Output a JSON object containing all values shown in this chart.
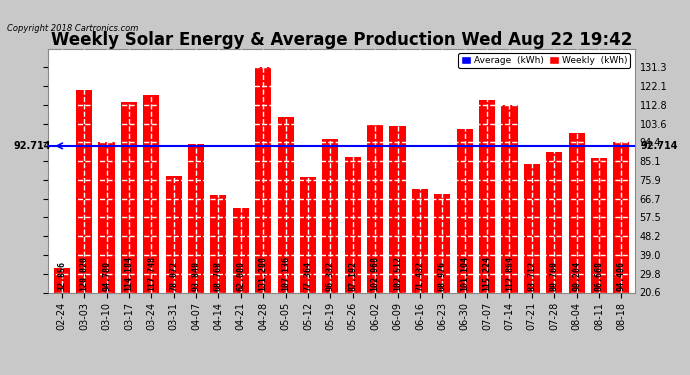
{
  "title": "Weekly Solar Energy & Average Production Wed Aug 22 19:42",
  "copyright": "Copyright 2018 Cartronics.com",
  "average_value": 92.714,
  "categories": [
    "02-24",
    "03-03",
    "03-10",
    "03-17",
    "03-24",
    "03-31",
    "04-07",
    "04-14",
    "04-21",
    "04-28",
    "05-05",
    "05-12",
    "05-19",
    "05-26",
    "06-02",
    "06-09",
    "06-16",
    "06-23",
    "06-30",
    "07-07",
    "07-14",
    "07-21",
    "07-28",
    "08-04",
    "08-11",
    "08-18"
  ],
  "values": [
    32.856,
    120.02,
    94.78,
    114.184,
    117.748,
    78.072,
    93.84,
    68.768,
    62.08,
    131.28,
    107.136,
    77.364,
    96.332,
    87.192,
    102.968,
    102.512,
    71.432,
    68.976,
    101.104,
    115.224,
    112.864,
    83.712,
    89.76,
    99.204,
    86.668,
    94.496
  ],
  "bar_color": "#ff0000",
  "average_line_color": "#0000ff",
  "background_color": "#c8c8c8",
  "plot_bg_color": "#ffffff",
  "grid_color": "#cccccc",
  "text_color": "#000000",
  "ylim_min": 20.6,
  "ylim_max": 140.5,
  "yticks": [
    20.6,
    29.8,
    39.0,
    48.2,
    57.5,
    66.7,
    75.9,
    85.1,
    94.4,
    103.6,
    112.8,
    122.1,
    131.3
  ],
  "legend_avg_color": "#0000ff",
  "legend_weekly_color": "#ff0000",
  "avg_label": "92.714",
  "title_fontsize": 12,
  "tick_fontsize": 7,
  "bar_label_fontsize": 6.0,
  "dpi": 100,
  "figsize": [
    6.9,
    3.75
  ]
}
